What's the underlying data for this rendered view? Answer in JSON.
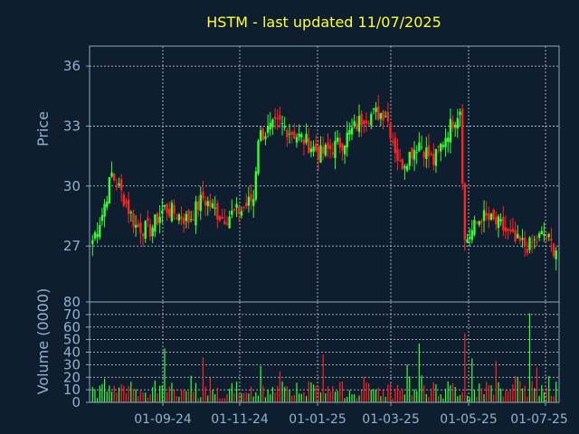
{
  "colors": {
    "background": "#0f1e2e",
    "title": "#ffff33",
    "axis_text": "#8fb1d4",
    "frame": "#8fa6c2",
    "grid": "#c8d2de",
    "up": "#33ff33",
    "down": "#ff2222"
  },
  "chart_data": [
    {
      "type": "candlestick",
      "panel": "price",
      "title": "HSTM - last updated 11/07/2025",
      "xlabel": "",
      "ylabel": "Price",
      "ylim": [
        24.2,
        37.0
      ],
      "yticks": [
        27,
        30,
        33,
        36
      ],
      "grid": true,
      "xticks": [
        "01-09-24",
        "01-11-24",
        "01-01-25",
        "01-03-25",
        "01-05-25",
        "01-07-25"
      ],
      "anchors": [
        {
          "day": 0,
          "close": 27.3
        },
        {
          "day": 4,
          "close": 28.6
        },
        {
          "day": 8,
          "close": 30.6
        },
        {
          "day": 13,
          "close": 29.4
        },
        {
          "day": 18,
          "close": 28.0
        },
        {
          "day": 24,
          "close": 27.8
        },
        {
          "day": 30,
          "close": 28.9
        },
        {
          "day": 40,
          "close": 28.3
        },
        {
          "day": 46,
          "close": 29.4
        },
        {
          "day": 54,
          "close": 28.4
        },
        {
          "day": 62,
          "close": 28.8
        },
        {
          "day": 67,
          "close": 29.4
        },
        {
          "day": 69,
          "close": 32.5
        },
        {
          "day": 78,
          "close": 33.1
        },
        {
          "day": 88,
          "close": 32.3
        },
        {
          "day": 95,
          "close": 31.6
        },
        {
          "day": 104,
          "close": 32.2
        },
        {
          "day": 113,
          "close": 33.5
        },
        {
          "day": 122,
          "close": 33.7
        },
        {
          "day": 128,
          "close": 31.0
        },
        {
          "day": 136,
          "close": 32.2
        },
        {
          "day": 142,
          "close": 31.2
        },
        {
          "day": 148,
          "close": 32.8
        },
        {
          "day": 153,
          "close": 33.9
        },
        {
          "day": 155,
          "close": 27.2
        },
        {
          "day": 162,
          "close": 28.5
        },
        {
          "day": 170,
          "close": 28.0
        },
        {
          "day": 176,
          "close": 27.2
        },
        {
          "day": 182,
          "close": 27.0
        },
        {
          "day": 188,
          "close": 27.6
        },
        {
          "day": 192,
          "close": 26.9
        }
      ],
      "series": []
    },
    {
      "type": "bar",
      "panel": "volume",
      "xlabel": "",
      "ylabel": "Volume (0000)",
      "ylim": [
        0,
        80
      ],
      "yticks": [
        0,
        10,
        20,
        30,
        40,
        50,
        60,
        70,
        80
      ],
      "grid": true,
      "spikes": [
        {
          "day": 30,
          "value": 43
        },
        {
          "day": 46,
          "value": 36
        },
        {
          "day": 70,
          "value": 29
        },
        {
          "day": 96,
          "value": 38
        },
        {
          "day": 131,
          "value": 30
        },
        {
          "day": 136,
          "value": 47
        },
        {
          "day": 155,
          "value": 55
        },
        {
          "day": 158,
          "value": 35
        },
        {
          "day": 168,
          "value": 33
        },
        {
          "day": 182,
          "value": 71
        },
        {
          "day": 185,
          "value": 28
        }
      ]
    }
  ]
}
